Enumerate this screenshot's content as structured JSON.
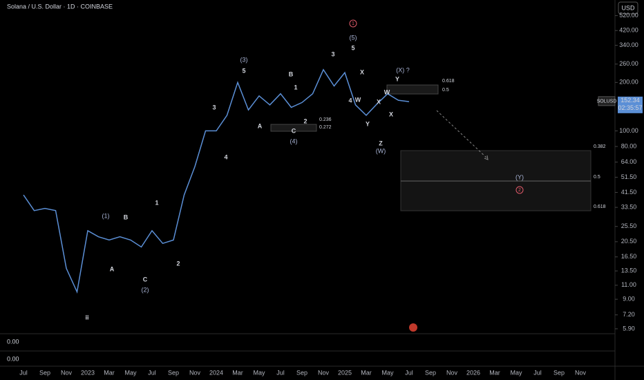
{
  "chart_data": {
    "type": "line",
    "title": "Solana / U.S. Dollar · 1D · COINBASE",
    "currency": "USD",
    "symbol": "SOLUSD",
    "last_price": 152.34,
    "countdown": "02:35:57",
    "pane_values": [
      "0.00",
      "0.00"
    ],
    "categories": [
      "Jul",
      null,
      "Sep",
      null,
      "Nov",
      null,
      "2023",
      null,
      "Mar",
      null,
      "May",
      null,
      "Jul",
      null,
      "Sep",
      null,
      "Nov",
      null,
      "2024",
      null,
      "Mar",
      null,
      "May",
      null,
      "Jul",
      null,
      "Sep",
      null,
      "Nov",
      null,
      "2025",
      null,
      "Mar",
      null,
      "May",
      null,
      "Jul",
      null,
      "Sep",
      null,
      "Nov",
      null,
      "2026",
      null,
      "Mar",
      null,
      "May",
      null,
      "Jul",
      null,
      "Sep",
      null,
      "Nov"
    ],
    "series": [
      {
        "name": "SOLUSD",
        "color": "#5b8fd6",
        "values": [
          40,
          32,
          33,
          32,
          14,
          10,
          24,
          22,
          21,
          22,
          21,
          19,
          24,
          20,
          21,
          40,
          60,
          100,
          100,
          125,
          200,
          135,
          165,
          145,
          170,
          140,
          150,
          170,
          240,
          190,
          230,
          145,
          125,
          147,
          170,
          155,
          152,
          null,
          null,
          null,
          null,
          null,
          null,
          null,
          null,
          null,
          null,
          null,
          null,
          null,
          null,
          null,
          null
        ]
      }
    ],
    "log_scale": true,
    "ylim": [
      5.5,
      650
    ],
    "yticks": [
      {
        "value": 5.9,
        "label": "5.90"
      },
      {
        "value": 7.2,
        "label": "7.20"
      },
      {
        "value": 9,
        "label": "9.00"
      },
      {
        "value": 11,
        "label": "11.00"
      },
      {
        "value": 13.5,
        "label": "13.50"
      },
      {
        "value": 16.5,
        "label": "16.50"
      },
      {
        "value": 20.5,
        "label": "20.50"
      },
      {
        "value": 25.5,
        "label": "25.50"
      },
      {
        "value": 33.5,
        "label": "33.50"
      },
      {
        "value": 41.5,
        "label": "41.50"
      },
      {
        "value": 51.5,
        "label": "51.50"
      },
      {
        "value": 64,
        "label": "64.00"
      },
      {
        "value": 80,
        "label": "80.00"
      },
      {
        "value": 100,
        "label": "100.00"
      },
      {
        "value": 200,
        "label": "200.00"
      },
      {
        "value": 260,
        "label": "260.00"
      },
      {
        "value": 340,
        "label": "340.00"
      },
      {
        "value": 420,
        "label": "420.00"
      },
      {
        "value": 520,
        "label": "520.00"
      }
    ],
    "annotations": [
      "ii",
      "(1)",
      "B",
      "A",
      "C",
      "(2)",
      "1",
      "2",
      "3",
      "4",
      "(3)",
      "5",
      "A",
      "B",
      "1",
      "2",
      "C",
      "(4)",
      "3",
      "4",
      "5",
      "(5)",
      "X",
      "W",
      "X",
      "Y",
      "Z",
      "(W)",
      "W",
      "Y",
      "X",
      "(X) ?",
      "(Y)",
      "0.236",
      "0.272",
      "0.618",
      "0.5",
      "0.382",
      "0.5",
      "0.618",
      "1",
      "2"
    ]
  }
}
